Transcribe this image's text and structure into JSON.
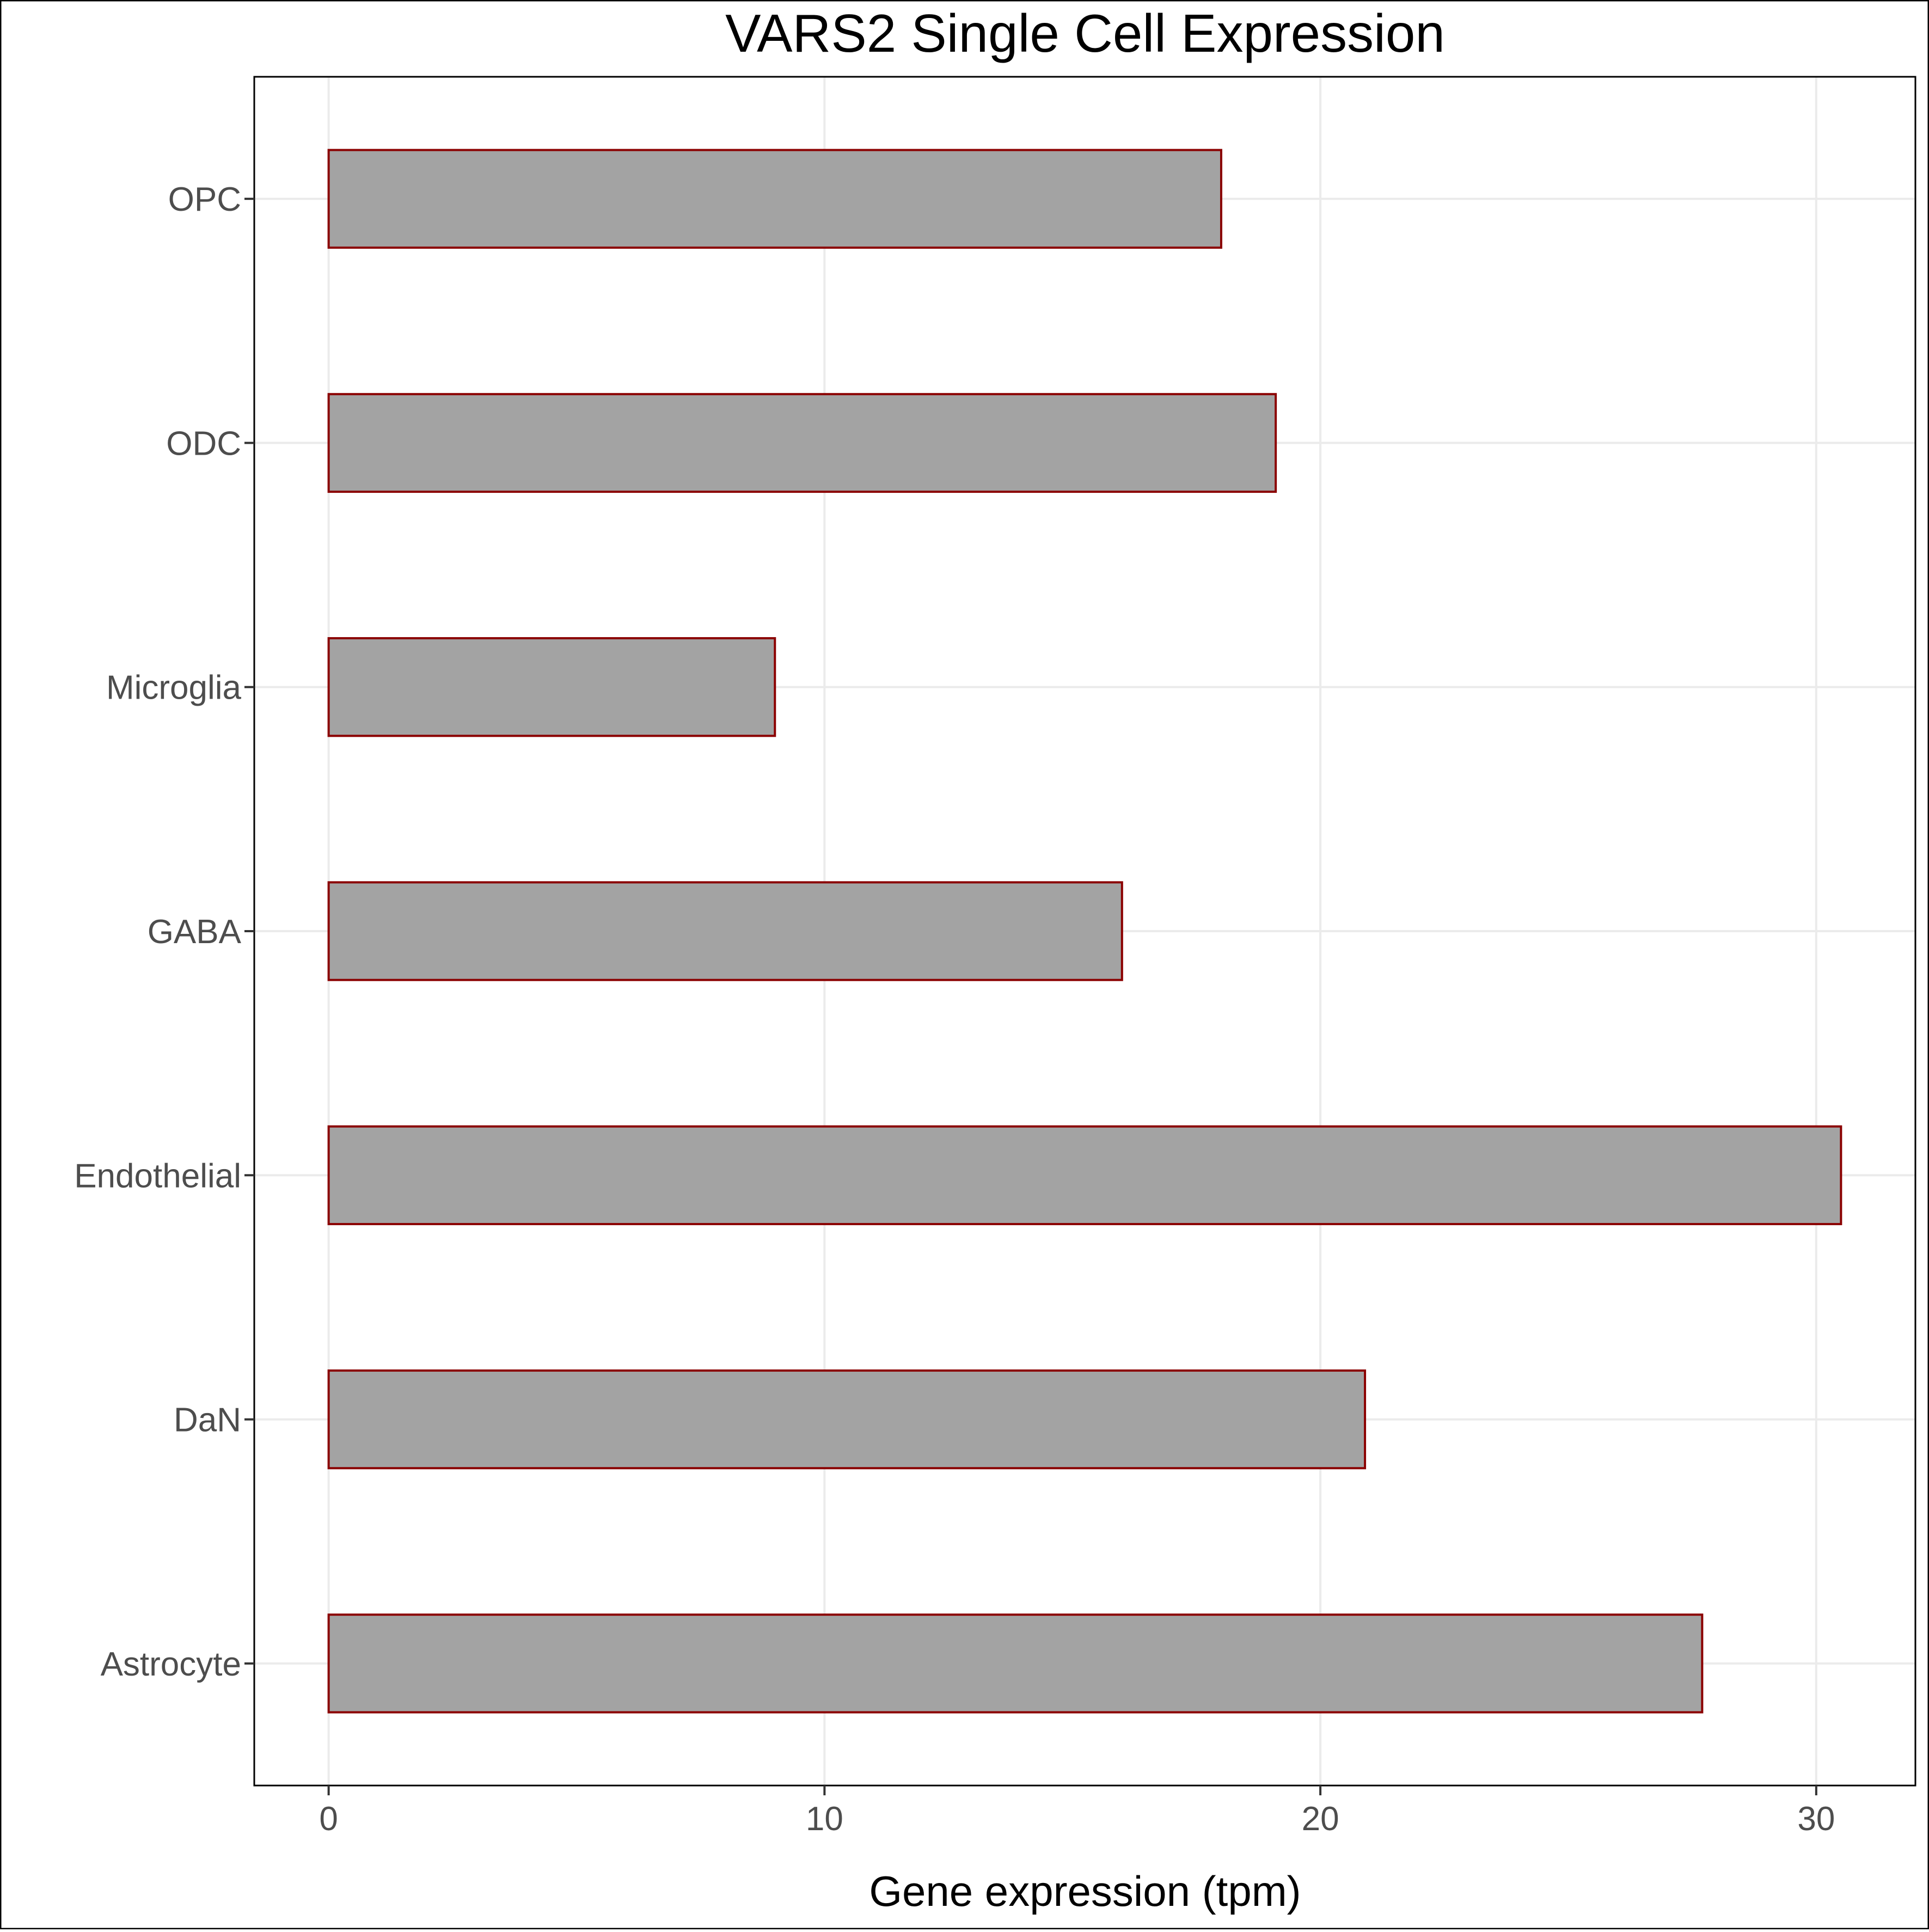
{
  "chart_data": {
    "type": "bar",
    "orientation": "horizontal",
    "title": "VARS2 Single Cell Expression",
    "xlabel": "Gene expression (tpm)",
    "ylabel": "",
    "categories": [
      "OPC",
      "ODC",
      "Microglia",
      "GABA",
      "Endothelial",
      "DaN",
      "Astrocyte"
    ],
    "values": [
      18.0,
      19.1,
      9.0,
      16.0,
      30.5,
      20.9,
      27.7
    ],
    "xlim": [
      -1.5,
      32.0
    ],
    "xticks": [
      0,
      10,
      20,
      30
    ],
    "grid": true,
    "legend": "none",
    "colors": {
      "bar_fill": "#a3a3a3",
      "bar_stroke": "#8b0000",
      "grid": "#ebebeb",
      "panel_border": "#000000",
      "tick_label": "#4d4d4d"
    }
  }
}
